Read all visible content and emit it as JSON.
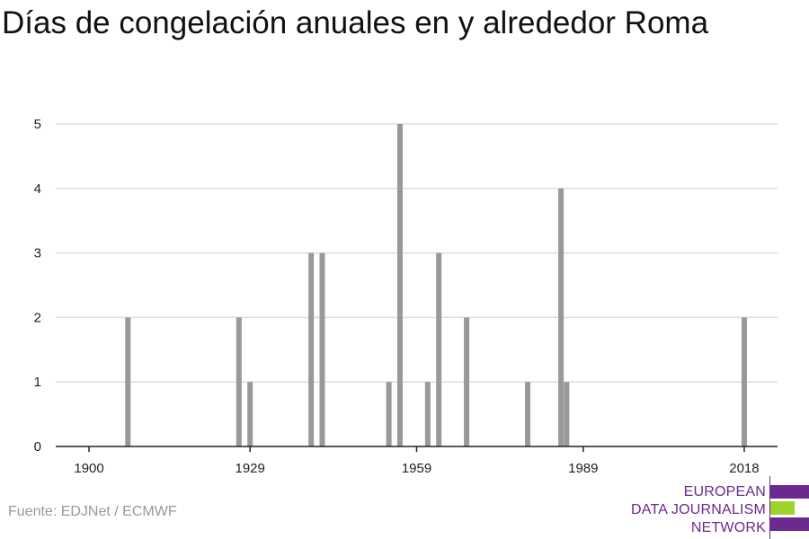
{
  "title": "Días de congelación anuales en y alrededor Roma",
  "source": "Fuente: EDJNet / ECMWF",
  "logo": {
    "lines": [
      "EUROPEAN",
      "DATA JOURNALISM",
      "NETWORK"
    ],
    "colors": {
      "purple": "#6a2a8e",
      "green": "#9ed42a"
    }
  },
  "colors": {
    "bar": "#999999",
    "grid": "#dddddd",
    "axis": "#222222"
  },
  "chart_data": {
    "type": "bar",
    "title": "Días de congelación anuales en y alrededor Roma",
    "xlabel": "",
    "ylabel": "",
    "xlim": [
      1894,
      2024
    ],
    "ylim": [
      0,
      5
    ],
    "grid": true,
    "x_ticks": [
      1900,
      1929,
      1959,
      1989,
      2018
    ],
    "y_ticks": [
      0,
      1,
      2,
      3,
      4,
      5
    ],
    "x": [
      1907,
      1927,
      1929,
      1940,
      1942,
      1954,
      1956,
      1961,
      1963,
      1968,
      1979,
      1985,
      1986,
      2018
    ],
    "values": [
      2,
      2,
      1,
      3,
      3,
      1,
      5,
      1,
      3,
      2,
      1,
      4,
      1,
      2
    ]
  }
}
